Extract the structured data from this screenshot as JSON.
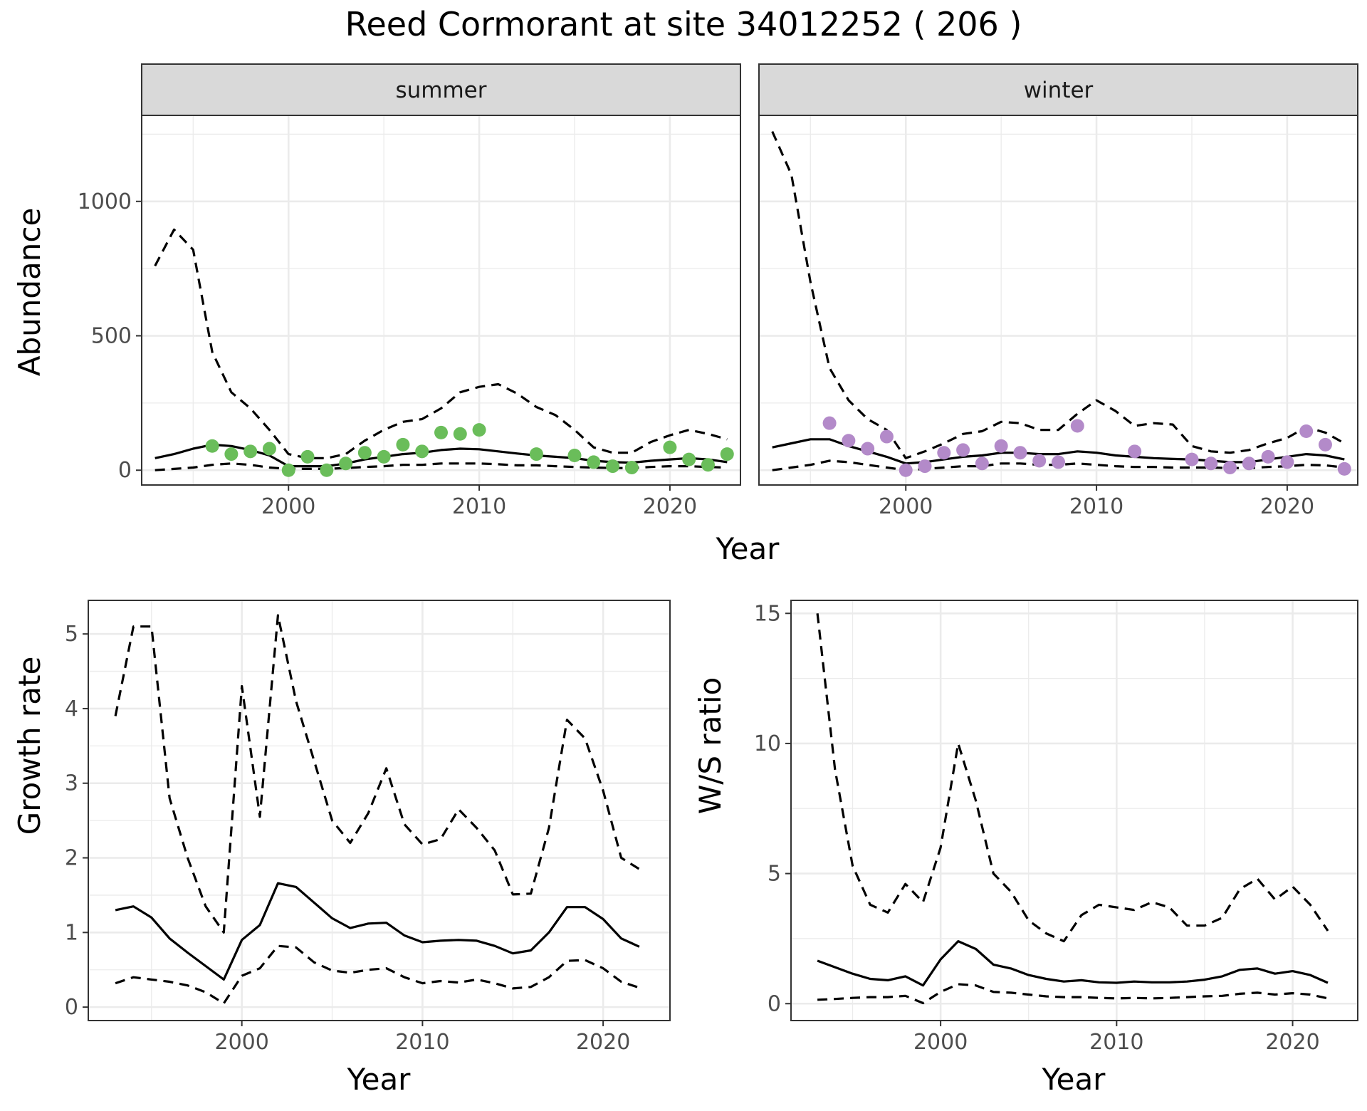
{
  "title": "Reed Cormorant at site 34012252 ( 206 )",
  "colors": {
    "summer_points": "#6abd5a",
    "winter_points": "#b38ac9",
    "strip_bg": "#d9d9d9"
  },
  "chart_data": [
    {
      "type": "line",
      "panel": "summer",
      "strip_label": "summer",
      "xlabel": "Year",
      "ylabel": "Abundance",
      "xlim": [
        1992.3,
        2023.7
      ],
      "ylim": [
        -55,
        1320
      ],
      "x_ticks": [
        2000,
        2010,
        2020
      ],
      "x_tick_labels": [
        "2000",
        "2010",
        "2020"
      ],
      "y_ticks": [
        0,
        500,
        1000
      ],
      "y_tick_labels": [
        "0",
        "500",
        "1000"
      ],
      "years": [
        1993,
        1994,
        1995,
        1996,
        1997,
        1998,
        1999,
        2000,
        2001,
        2002,
        2003,
        2004,
        2005,
        2006,
        2007,
        2008,
        2009,
        2010,
        2011,
        2012,
        2013,
        2014,
        2015,
        2016,
        2017,
        2018,
        2019,
        2020,
        2021,
        2022,
        2023
      ],
      "mid": [
        45,
        60,
        80,
        95,
        90,
        75,
        55,
        15,
        15,
        15,
        25,
        40,
        50,
        60,
        65,
        75,
        80,
        78,
        70,
        62,
        55,
        50,
        45,
        35,
        30,
        28,
        35,
        40,
        45,
        40,
        30
      ],
      "upper": [
        760,
        895,
        820,
        440,
        290,
        230,
        150,
        60,
        45,
        45,
        60,
        110,
        150,
        180,
        190,
        230,
        290,
        310,
        320,
        285,
        235,
        205,
        150,
        85,
        65,
        65,
        105,
        130,
        150,
        135,
        115
      ],
      "lower": [
        0,
        5,
        10,
        20,
        25,
        20,
        10,
        5,
        5,
        5,
        8,
        12,
        15,
        20,
        20,
        25,
        25,
        25,
        22,
        18,
        18,
        15,
        12,
        10,
        8,
        8,
        12,
        15,
        15,
        12,
        10
      ],
      "points": {
        "x": [
          1996,
          1997,
          1998,
          1999,
          2000,
          2001,
          2002,
          2003,
          2004,
          2005,
          2006,
          2007,
          2008,
          2009,
          2010,
          2013,
          2015,
          2016,
          2017,
          2018,
          2020,
          2021,
          2022,
          2023
        ],
        "y": [
          90,
          60,
          70,
          80,
          0,
          50,
          0,
          25,
          65,
          50,
          95,
          70,
          140,
          135,
          150,
          60,
          55,
          30,
          15,
          10,
          85,
          40,
          20,
          60
        ]
      }
    },
    {
      "type": "line",
      "panel": "winter",
      "strip_label": "winter",
      "xlabel": "Year",
      "xlim": [
        1992.3,
        2023.7
      ],
      "ylim": [
        -55,
        1320
      ],
      "x_ticks": [
        2000,
        2010,
        2020
      ],
      "x_tick_labels": [
        "2000",
        "2010",
        "2020"
      ],
      "years": [
        1993,
        1994,
        1995,
        1996,
        1997,
        1998,
        1999,
        2000,
        2001,
        2002,
        2003,
        2004,
        2005,
        2006,
        2007,
        2008,
        2009,
        2010,
        2011,
        2012,
        2013,
        2014,
        2015,
        2016,
        2017,
        2018,
        2019,
        2020,
        2021,
        2022,
        2023
      ],
      "mid": [
        85,
        100,
        115,
        115,
        90,
        70,
        50,
        25,
        30,
        40,
        50,
        55,
        65,
        65,
        60,
        60,
        70,
        65,
        55,
        50,
        45,
        42,
        40,
        35,
        30,
        30,
        40,
        50,
        60,
        55,
        40
      ],
      "upper": [
        1260,
        1100,
        700,
        380,
        260,
        190,
        150,
        45,
        70,
        100,
        135,
        145,
        180,
        175,
        150,
        150,
        210,
        260,
        220,
        165,
        175,
        170,
        90,
        70,
        65,
        75,
        100,
        120,
        160,
        140,
        100
      ],
      "lower": [
        0,
        10,
        20,
        35,
        30,
        20,
        10,
        0,
        5,
        10,
        15,
        15,
        25,
        25,
        20,
        20,
        25,
        20,
        15,
        12,
        12,
        10,
        10,
        10,
        8,
        8,
        12,
        15,
        20,
        18,
        10
      ],
      "points": {
        "x": [
          1996,
          1997,
          1998,
          1999,
          2000,
          2001,
          2002,
          2003,
          2004,
          2005,
          2006,
          2007,
          2008,
          2009,
          2012,
          2015,
          2016,
          2017,
          2018,
          2019,
          2020,
          2021,
          2022,
          2023
        ],
        "y": [
          175,
          110,
          80,
          125,
          0,
          15,
          65,
          75,
          25,
          90,
          65,
          35,
          30,
          165,
          70,
          40,
          25,
          10,
          25,
          50,
          30,
          145,
          95,
          5
        ]
      }
    },
    {
      "type": "line",
      "panel": "growth",
      "xlabel": "Year",
      "ylabel": "Growth rate",
      "xlim": [
        1991.5,
        2023.7
      ],
      "ylim": [
        -0.18,
        5.45
      ],
      "x_ticks": [
        2000,
        2010,
        2020
      ],
      "x_tick_labels": [
        "2000",
        "2010",
        "2020"
      ],
      "y_ticks": [
        0,
        1,
        2,
        3,
        4,
        5
      ],
      "y_tick_labels": [
        "0",
        "1",
        "2",
        "3",
        "4",
        "5"
      ],
      "years": [
        1993,
        1994,
        1995,
        1996,
        1997,
        1998,
        1999,
        2000,
        2001,
        2002,
        2003,
        2004,
        2005,
        2006,
        2007,
        2008,
        2009,
        2010,
        2011,
        2012,
        2013,
        2014,
        2015,
        2016,
        2017,
        2018,
        2019,
        2020,
        2021,
        2022
      ],
      "mid": [
        1.3,
        1.35,
        1.2,
        0.92,
        0.73,
        0.55,
        0.37,
        0.9,
        1.1,
        1.66,
        1.61,
        1.4,
        1.19,
        1.06,
        1.12,
        1.13,
        0.96,
        0.87,
        0.89,
        0.9,
        0.89,
        0.82,
        0.72,
        0.76,
        1.0,
        1.34,
        1.34,
        1.18,
        0.92,
        0.81
      ],
      "upper": [
        3.9,
        5.1,
        5.1,
        2.8,
        2.0,
        1.35,
        1.0,
        4.3,
        2.55,
        5.25,
        4.1,
        3.3,
        2.5,
        2.2,
        2.6,
        3.2,
        2.45,
        2.18,
        2.25,
        2.65,
        2.4,
        2.1,
        1.51,
        1.52,
        2.4,
        3.85,
        3.6,
        2.9,
        2.0,
        1.85
      ],
      "lower": [
        0.32,
        0.4,
        0.37,
        0.34,
        0.29,
        0.2,
        0.05,
        0.42,
        0.52,
        0.82,
        0.8,
        0.6,
        0.49,
        0.46,
        0.5,
        0.52,
        0.4,
        0.32,
        0.35,
        0.33,
        0.37,
        0.32,
        0.25,
        0.27,
        0.4,
        0.62,
        0.63,
        0.52,
        0.34,
        0.26
      ]
    },
    {
      "type": "line",
      "panel": "ws_ratio",
      "xlabel": "Year",
      "ylabel": "W/S ratio",
      "xlim": [
        1991.5,
        2023.7
      ],
      "ylim": [
        -0.65,
        15.5
      ],
      "x_ticks": [
        2000,
        2010,
        2020
      ],
      "x_tick_labels": [
        "2000",
        "2010",
        "2020"
      ],
      "y_ticks": [
        0,
        5,
        10,
        15
      ],
      "y_tick_labels": [
        "0",
        "5",
        "10",
        "15"
      ],
      "years": [
        1993,
        1994,
        1995,
        1996,
        1997,
        1998,
        1999,
        2000,
        2001,
        2002,
        2003,
        2004,
        2005,
        2006,
        2007,
        2008,
        2009,
        2010,
        2011,
        2012,
        2013,
        2014,
        2015,
        2016,
        2017,
        2018,
        2019,
        2020,
        2021,
        2022
      ],
      "mid": [
        1.65,
        1.4,
        1.15,
        0.95,
        0.9,
        1.05,
        0.7,
        1.7,
        2.4,
        2.1,
        1.5,
        1.35,
        1.1,
        0.95,
        0.85,
        0.9,
        0.82,
        0.8,
        0.85,
        0.82,
        0.82,
        0.85,
        0.92,
        1.05,
        1.3,
        1.35,
        1.15,
        1.25,
        1.1,
        0.8
      ],
      "upper": [
        15.0,
        9.0,
        5.3,
        3.8,
        3.5,
        4.6,
        3.9,
        6.0,
        10.0,
        7.8,
        5.0,
        4.3,
        3.2,
        2.7,
        2.4,
        3.4,
        3.8,
        3.7,
        3.6,
        3.9,
        3.7,
        3.0,
        3.0,
        3.3,
        4.4,
        4.8,
        4.0,
        4.5,
        3.8,
        2.8
      ],
      "lower": [
        0.15,
        0.18,
        0.22,
        0.25,
        0.25,
        0.3,
        0.02,
        0.45,
        0.75,
        0.7,
        0.45,
        0.42,
        0.35,
        0.28,
        0.25,
        0.25,
        0.22,
        0.2,
        0.22,
        0.2,
        0.22,
        0.25,
        0.28,
        0.3,
        0.38,
        0.42,
        0.35,
        0.4,
        0.35,
        0.2
      ]
    }
  ]
}
